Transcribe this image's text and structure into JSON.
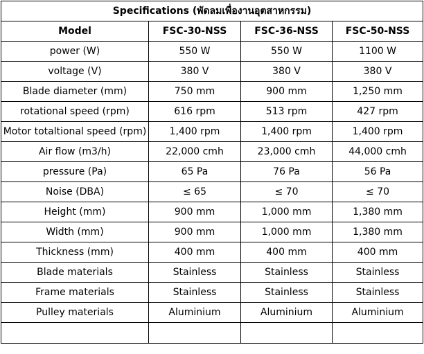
{
  "title": "Specifications (พัดลมเพื่องานอุตสาหกรรม)",
  "header": {
    "label": "Model",
    "models": [
      "FSC-30-NSS",
      "FSC-36-NSS",
      "FSC-50-NSS"
    ]
  },
  "rows": [
    {
      "label": "power (W)",
      "values": [
        "550 W",
        "550 W",
        "1100 W"
      ]
    },
    {
      "label": "voltage  (V)",
      "values": [
        "380 V",
        "380 V",
        "380 V"
      ]
    },
    {
      "label": "Blade diameter (mm)",
      "values": [
        "750 mm",
        "900 mm",
        "1,250 mm"
      ]
    },
    {
      "label": "rotational speed (rpm)",
      "values": [
        "616 rpm",
        "513 rpm",
        "427 rpm"
      ]
    },
    {
      "label": "Motor totaltional speed (rpm)",
      "values": [
        "1,400 rpm",
        "1,400 rpm",
        "1,400 rpm"
      ]
    },
    {
      "label": "Air flow (m3/h)",
      "values": [
        "22,000 cmh",
        "23,000 cmh",
        "44,000 cmh"
      ]
    },
    {
      "label": "pressure (Pa)",
      "values": [
        "65 Pa",
        "76 Pa",
        "56 Pa"
      ]
    },
    {
      "label": "Noise (DBA)",
      "values": [
        "≤ 65",
        "≤ 70",
        "≤ 70"
      ]
    },
    {
      "label": "Height (mm)",
      "values": [
        "900 mm",
        "1,000 mm",
        "1,380 mm"
      ]
    },
    {
      "label": "Width  (mm)",
      "values": [
        "900 mm",
        "1,000 mm",
        "1,380 mm"
      ]
    },
    {
      "label": "Thickness  (mm)",
      "values": [
        "400 mm",
        "400 mm",
        "400 mm"
      ]
    },
    {
      "label": "Blade materials",
      "values": [
        "Stainless",
        "Stainless",
        "Stainless"
      ]
    },
    {
      "label": "Frame materials",
      "values": [
        "Stainless",
        "Stainless",
        "Stainless"
      ]
    },
    {
      "label": "Pulley materials",
      "values": [
        "Aluminium",
        "Aluminium",
        "Aluminium"
      ]
    }
  ]
}
